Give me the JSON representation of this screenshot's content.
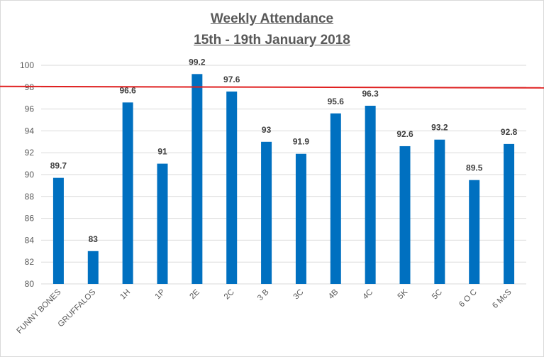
{
  "chart_data": {
    "type": "bar",
    "title": "Weekly Attendance",
    "subtitle": "15th - 19th January 2018",
    "categories": [
      "FUNNY BONES",
      "GRUFFALOS",
      "1H",
      "1P",
      "2E",
      "2C",
      "3 B",
      "3C",
      "4B",
      "4C",
      "5K",
      "5C",
      "6 O C",
      "6 McS"
    ],
    "values": [
      89.7,
      83,
      96.6,
      91,
      99.2,
      97.6,
      93,
      91.9,
      95.6,
      96.3,
      92.6,
      93.2,
      89.5,
      92.8
    ],
    "ylim": [
      80,
      100
    ],
    "yticks": [
      80,
      82,
      84,
      86,
      88,
      90,
      92,
      94,
      96,
      98,
      100
    ],
    "target_line": 98,
    "grid": true,
    "legend": "none",
    "colors": {
      "bar": "#0070c0",
      "target_line": "#e02020",
      "grid": "#d9d9d9"
    }
  }
}
